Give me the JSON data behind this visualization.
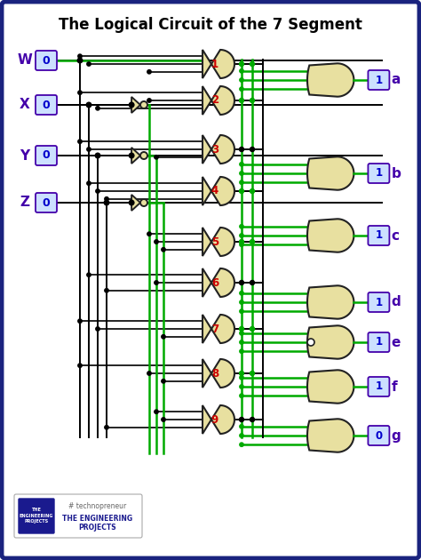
{
  "title": "The Logical Circuit of the 7 Segment",
  "bg_color": "#ffffff",
  "border_color": "#1a237e",
  "gate_fill": "#e8e0a0",
  "gate_edge": "#222222",
  "wire_black": "#000000",
  "wire_green": "#00aa00",
  "label_purple": "#4400aa",
  "label_red": "#cc0000",
  "value_blue": "#0000cc",
  "value_bg": "#cce0ff",
  "value_border": "#4400aa",
  "inputs": [
    "W",
    "X",
    "Y",
    "Z"
  ],
  "input_values": [
    "0",
    "0",
    "0",
    "0"
  ],
  "and_labels": [
    "1",
    "2",
    "3",
    "4",
    "5",
    "6",
    "7",
    "8",
    "9"
  ],
  "or_labels": [
    "a",
    "b",
    "c",
    "d",
    "e",
    "f",
    "g"
  ],
  "or_values": [
    "1",
    "1",
    "1",
    "1",
    "1",
    "1",
    "0"
  ],
  "figw": 4.74,
  "figh": 6.3,
  "dpi": 100
}
